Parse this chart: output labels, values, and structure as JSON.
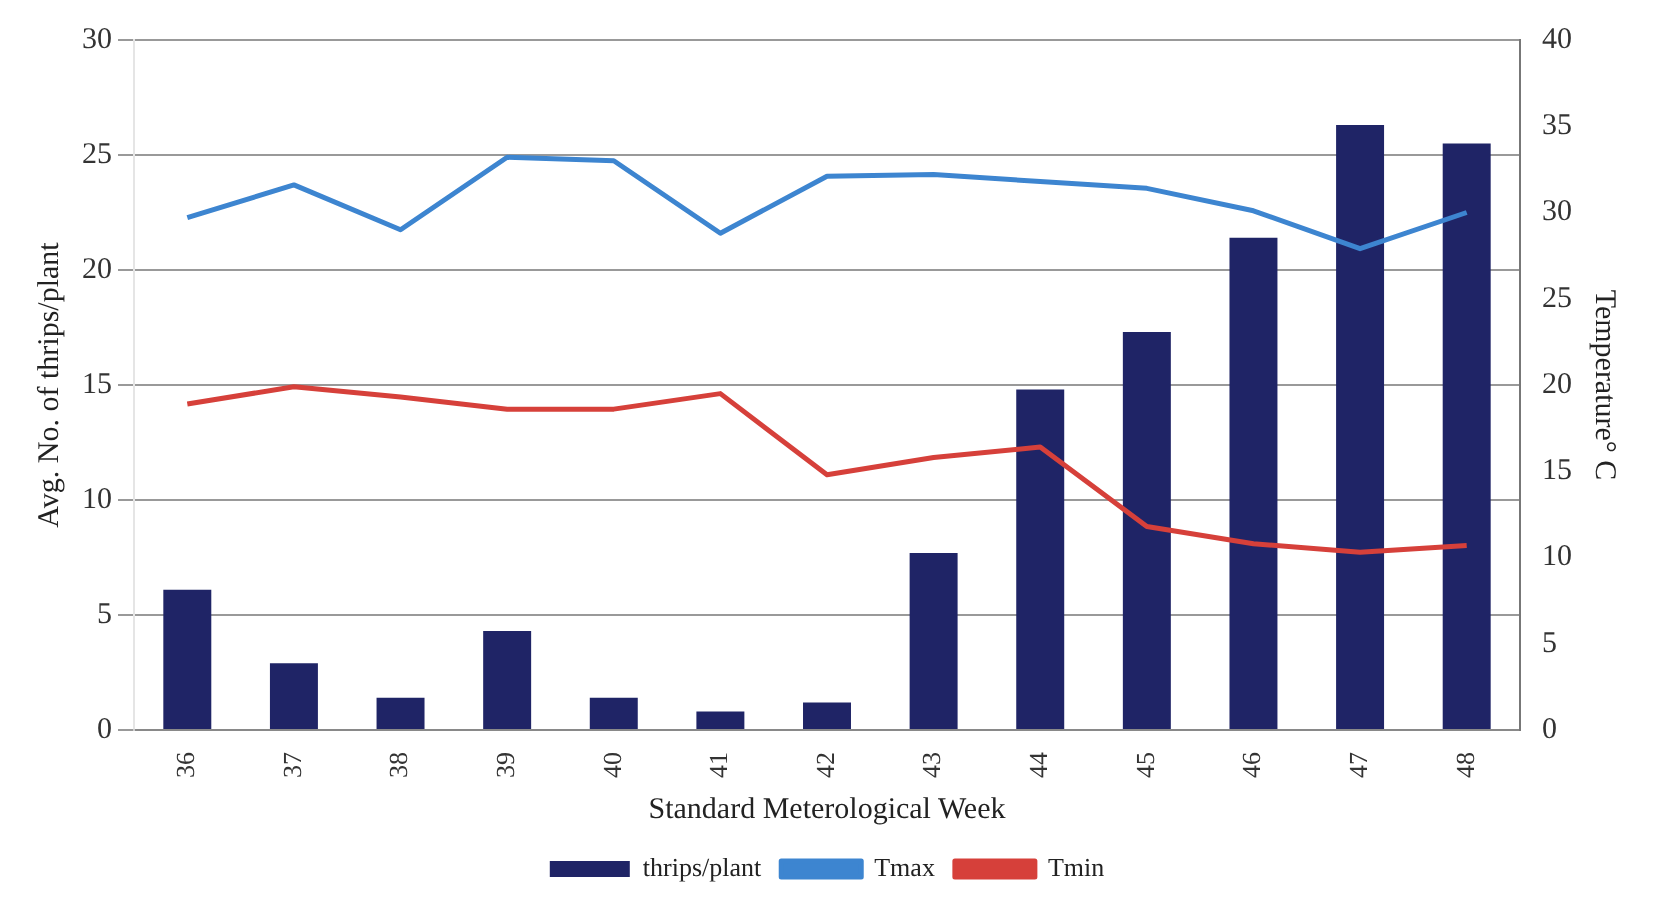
{
  "chart_data": {
    "type": "bar",
    "xlabel": "Standard Meterological Week",
    "ylabel": "Avg. No. of thrips/plant",
    "y2label": "Temperature° C",
    "categories": [
      "36",
      "37",
      "38",
      "39",
      "40",
      "41",
      "42",
      "43",
      "44",
      "45",
      "46",
      "47",
      "48"
    ],
    "series": [
      {
        "name": "thrips/plant",
        "color": "#1f2466",
        "values": [
          6.1,
          2.9,
          1.4,
          4.3,
          1.4,
          0.8,
          1.2,
          7.7,
          14.8,
          17.3,
          21.4,
          26.3,
          25.5
        ]
      },
      {
        "name": "Tmax",
        "type": "line",
        "axis": "y2",
        "color": "#3d85d0",
        "values": [
          29.7,
          31.6,
          29.0,
          33.2,
          33.0,
          28.8,
          32.1,
          32.2,
          31.8,
          31.4,
          30.1,
          27.9,
          30.0
        ]
      },
      {
        "name": "Tmin",
        "type": "line",
        "axis": "y2",
        "color": "#d6403a",
        "values": [
          18.9,
          19.9,
          19.3,
          18.6,
          18.6,
          19.5,
          14.8,
          15.8,
          16.4,
          11.8,
          10.8,
          10.3,
          10.7
        ]
      }
    ],
    "ylim": [
      0,
      30
    ],
    "yticks": [
      0,
      5,
      10,
      15,
      20,
      25,
      30
    ],
    "y2lim": [
      0,
      40
    ],
    "y2ticks": [
      0,
      5,
      10,
      15,
      20,
      25,
      30,
      35,
      40
    ],
    "grid": "y",
    "legend": "bottom",
    "marker": "none",
    "line_style": "solid"
  }
}
